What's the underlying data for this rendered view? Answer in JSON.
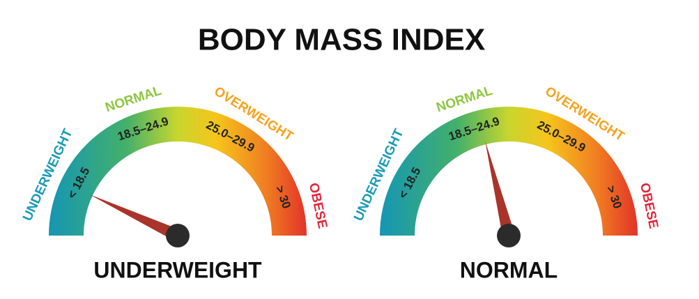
{
  "title": "BODY MASS INDEX",
  "gauges": [
    {
      "ranges": [
        {
          "label": "UNDERWEIGHT",
          "range": "< 18.5"
        },
        {
          "label": "NORMAL",
          "range": "18.5–24.9"
        },
        {
          "label": "OVERWEIGHT",
          "range": "25.0–29.9"
        },
        {
          "label": "OBESE",
          "range": "> 30"
        }
      ],
      "result": "UNDERWEIGHT"
    },
    {
      "ranges": [
        {
          "label": "UNDERWEIGHT",
          "range": "< 18.5"
        },
        {
          "label": "NORMAL",
          "range": "18.5–24.9"
        },
        {
          "label": "OVERWEIGHT",
          "range": "25.0–29.9"
        },
        {
          "label": "OBESE",
          "range": "> 30"
        }
      ],
      "result": "NORMAL"
    }
  ]
}
